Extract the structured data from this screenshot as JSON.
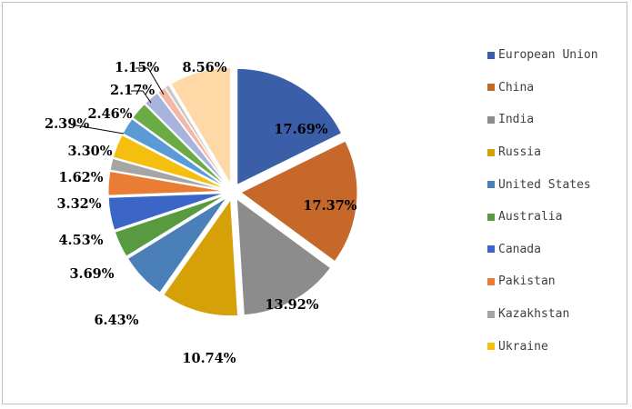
{
  "chart_data": {
    "type": "pie",
    "exploded": true,
    "legend_position": "right",
    "categories": [
      "European Union",
      "China",
      "India",
      "Russia",
      "United States",
      "Australia",
      "Canada",
      "Pakistan",
      "Kazakhstan",
      "Ukraine",
      "",
      "",
      "",
      "",
      "",
      ""
    ],
    "values": [
      17.69,
      17.37,
      13.92,
      10.74,
      6.43,
      3.69,
      4.53,
      3.32,
      1.62,
      3.3,
      2.39,
      2.46,
      2.17,
      1.15,
      0.6,
      8.56
    ],
    "labels": [
      "17.69%",
      "17.37%",
      "13.92%",
      "10.74%",
      "6.43%",
      "3.69%",
      "4.53%",
      "3.32%",
      "1.62%",
      "3.30%",
      "2.39%",
      "2.46%",
      "2.17%",
      "1.15%",
      "",
      "8.56%"
    ],
    "colors": [
      "#3a5ea8",
      "#c5682a",
      "#8c8c8c",
      "#d6a007",
      "#4b7fb8",
      "#589a3f",
      "#3b66c7",
      "#ea7d35",
      "#a5a5a5",
      "#f5bf0f",
      "#5a9bd5",
      "#6aab46",
      "#a7b3dd",
      "#f4b6a6",
      "#c9c9c9",
      "#fed8a6"
    ]
  }
}
